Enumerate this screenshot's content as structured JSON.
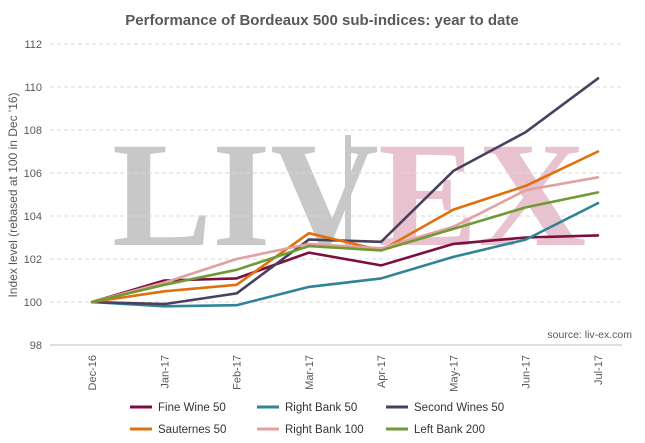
{
  "chart_data": {
    "type": "line",
    "title": "Performance of Bordeaux 500 sub-indices: year to date",
    "ylabel": "Index level (rebased at 100 in Dec '16)",
    "xlabel": "",
    "categories": [
      "Dec-16",
      "Jan-17",
      "Feb-17",
      "Mar-17",
      "Apr-17",
      "May-17",
      "Jun-17",
      "Jul-17"
    ],
    "ylim": [
      98,
      112
    ],
    "yticks": [
      98,
      100,
      102,
      104,
      106,
      108,
      110,
      112
    ],
    "grid": true,
    "legend_position": "bottom",
    "source": "source: liv-ex.com",
    "watermark": {
      "left": "LIV",
      "right": "EX",
      "left_color": "#c8c8c8",
      "right_color": "#e8c3cf"
    },
    "series": [
      {
        "name": "Fine Wine 50",
        "color": "#7b0f3f",
        "values": [
          100,
          101.0,
          101.1,
          102.3,
          101.7,
          102.7,
          103.0,
          103.1
        ]
      },
      {
        "name": "Right Bank 50",
        "color": "#2e8599",
        "values": [
          100,
          99.8,
          99.85,
          100.7,
          101.1,
          102.1,
          102.9,
          104.6
        ]
      },
      {
        "name": "Second Wines 50",
        "color": "#4a3f5c",
        "values": [
          100,
          99.9,
          100.4,
          102.9,
          102.8,
          106.1,
          107.9,
          110.4
        ]
      },
      {
        "name": "Sauternes 50",
        "color": "#e0700d",
        "values": [
          100,
          100.5,
          100.8,
          103.2,
          102.4,
          104.3,
          105.4,
          107.0
        ]
      },
      {
        "name": "Right Bank 100",
        "color": "#e3a0a0",
        "values": [
          100,
          100.9,
          102.0,
          102.7,
          102.5,
          103.5,
          105.2,
          105.8
        ]
      },
      {
        "name": "Left Bank 200",
        "color": "#6f9a35",
        "values": [
          100,
          100.8,
          101.5,
          102.6,
          102.4,
          103.4,
          104.4,
          105.1
        ]
      }
    ]
  }
}
